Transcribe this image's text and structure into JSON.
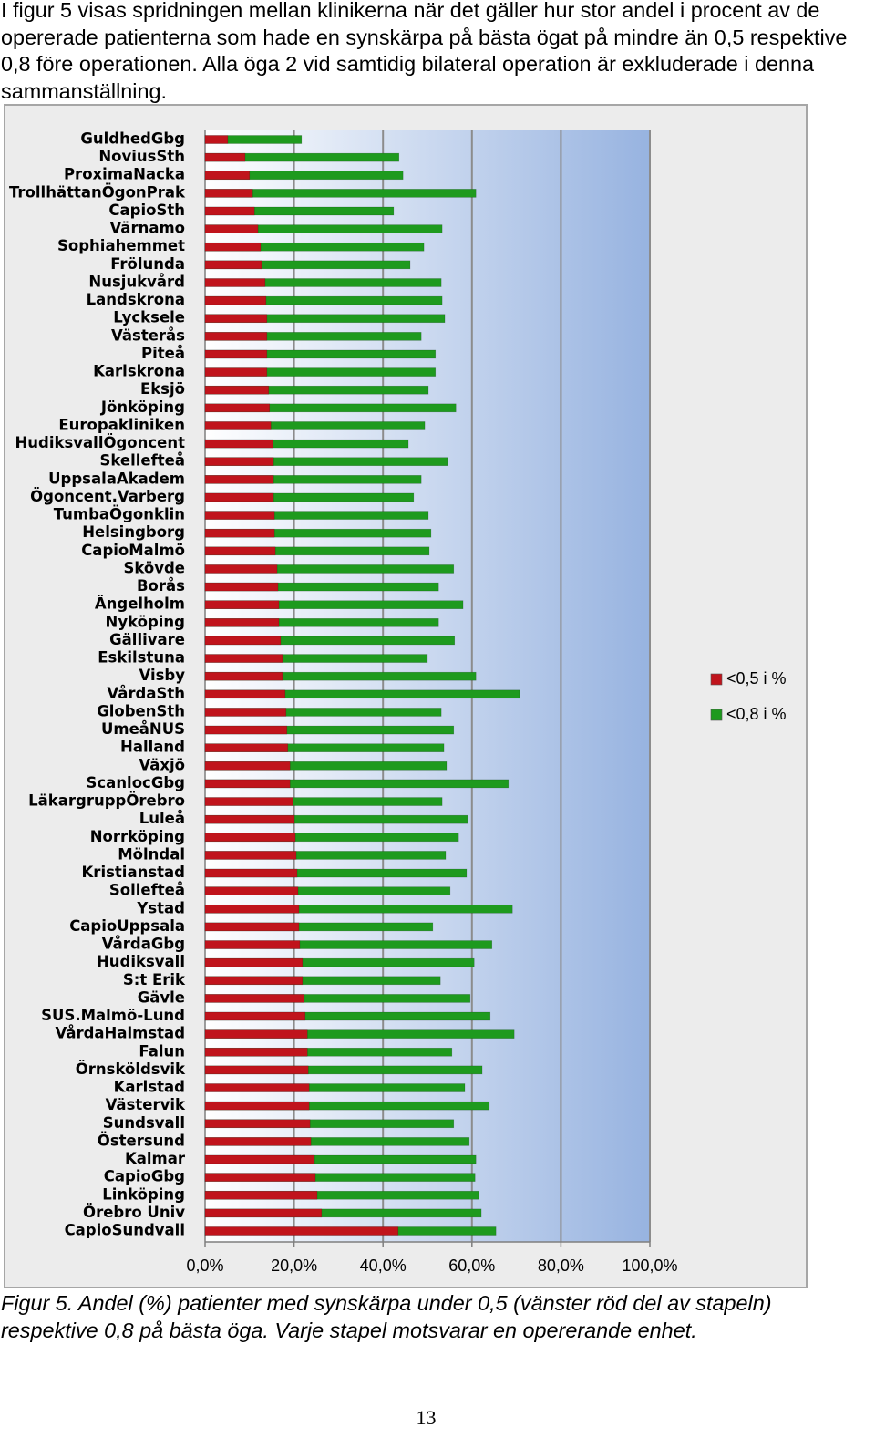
{
  "paragraph": "I figur 5 visas spridningen mellan klinikerna när det gäller hur stor andel i procent av de opererade patienterna som hade en synskärpa på bästa ögat på mindre än 0,5 respektive 0,8 före operationen. Alla öga 2 vid samtidig bilateral operation är exkluderade i denna sammanställning.",
  "chart_data": {
    "type": "bar",
    "orientation": "horizontal",
    "overlap": true,
    "categories": [
      "GuldhedGbg",
      "NoviusSth",
      "ProximaNacka",
      "TrollhättanÖgonPrak",
      "CapioSth",
      "Värnamo",
      "Sophiahemmet",
      "Frölunda",
      "Nusjukvård",
      "Landskrona",
      "Lycksele",
      "Västerås",
      "Piteå",
      "Karlskrona",
      "Eksjö",
      "Jönköping",
      "Europakliniken",
      "HudiksvallÖgoncent",
      "Skellefteå",
      "UppsalaAkadem",
      "Ögoncent.Varberg",
      "TumbaÖgonklin",
      "Helsingborg",
      "CapioMalmö",
      "Skövde",
      "Borås",
      "Ängelholm",
      "Nyköping",
      "Gällivare",
      "Eskilstuna",
      "Visby",
      "VårdaSth",
      "GlobenSth",
      "UmeåNUS",
      "Halland",
      "Växjö",
      "ScanlocGbg",
      "LäkargruppÖrebro",
      "Luleå",
      "Norrköping",
      "Mölndal",
      "Kristianstad",
      "Sollefteå",
      "Ystad",
      "CapioUppsala",
      "VårdaGbg",
      "Hudiksvall",
      "S:t Erik",
      "Gävle",
      "SUS.Malmö-Lund",
      "VårdaHalmstad",
      "Falun",
      "Örnsköldsvik",
      "Karlstad",
      "Västervik",
      "Sundsvall",
      "Östersund",
      "Kalmar",
      "CapioGbg",
      "Linköping",
      "Örebro Univ",
      "CapioSundvall"
    ],
    "series": [
      {
        "name": "<0,5 i %",
        "color": "#c0141c",
        "values": [
          5.1,
          9.0,
          10.0,
          10.7,
          11.1,
          11.9,
          12.5,
          12.7,
          13.5,
          13.7,
          13.9,
          13.9,
          13.9,
          13.9,
          14.3,
          14.5,
          14.8,
          15.2,
          15.4,
          15.4,
          15.4,
          15.6,
          15.6,
          15.8,
          16.2,
          16.4,
          16.6,
          16.6,
          17.0,
          17.4,
          17.4,
          18.0,
          18.2,
          18.4,
          18.6,
          19.1,
          19.1,
          19.7,
          20.1,
          20.3,
          20.5,
          20.7,
          20.9,
          21.1,
          21.1,
          21.3,
          21.9,
          21.9,
          22.3,
          22.5,
          23.0,
          23.0,
          23.2,
          23.4,
          23.4,
          23.6,
          23.8,
          24.6,
          24.8,
          25.2,
          26.2,
          43.4
        ]
      },
      {
        "name": "<0,8 i %",
        "color": "#1e9a1e",
        "values": [
          21.7,
          43.6,
          44.5,
          60.9,
          42.4,
          53.3,
          49.2,
          46.1,
          53.1,
          53.3,
          53.9,
          48.6,
          51.8,
          51.8,
          50.2,
          56.4,
          49.4,
          45.7,
          54.5,
          48.6,
          46.9,
          50.2,
          50.8,
          50.4,
          55.9,
          52.5,
          58.0,
          52.5,
          56.1,
          50.0,
          60.9,
          70.7,
          53.1,
          55.9,
          53.7,
          54.3,
          68.2,
          53.3,
          59.0,
          57.0,
          54.1,
          58.8,
          55.1,
          69.1,
          51.2,
          64.5,
          60.5,
          52.9,
          59.6,
          64.1,
          69.5,
          55.5,
          62.3,
          58.4,
          63.9,
          55.9,
          59.4,
          60.9,
          60.7,
          61.5,
          62.1,
          65.4
        ]
      }
    ],
    "xlim": [
      0,
      100
    ],
    "xticks": [
      {
        "value": 0,
        "label": "0,0%"
      },
      {
        "value": 20,
        "label": "20,0%"
      },
      {
        "value": 40,
        "label": "40,0%"
      },
      {
        "value": 60,
        "label": "60,0%"
      },
      {
        "value": 80,
        "label": "80,0%"
      },
      {
        "value": 100,
        "label": "100,0%"
      }
    ],
    "grid": true,
    "legend": "right"
  },
  "caption": "Figur 5. Andel (%) patienter med synskärpa under 0,5 (vänster röd del av stapeln) respektive 0,8 på bästa öga. Varje stapel motsvarar en opererande enhet.",
  "page_number": "13"
}
